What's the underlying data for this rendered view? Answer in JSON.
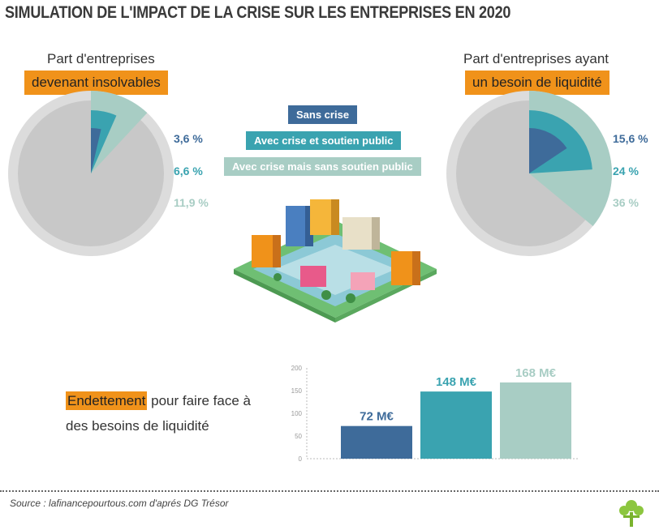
{
  "title": "SIMULATION DE L'IMPACT DE LA CRISE SUR LES ENTREPRISES EN 2020",
  "colors": {
    "sans_crise": "#3e6b9a",
    "avec_soutien": "#3aa3b0",
    "sans_soutien": "#a8cdc4",
    "highlight": "#f0921a",
    "pie_outer": "#dcdcdc",
    "pie_inner": "#c8c8c8"
  },
  "legend": {
    "sans_crise": "Sans crise",
    "avec_soutien": "Avec crise et soutien public",
    "sans_soutien": "Avec crise mais sans soutien public"
  },
  "left_pie": {
    "caption_line1": "Part d'entreprises",
    "caption_highlight": "devenant insolvables",
    "labels": [
      "3,6 %",
      "6,6 %",
      "11,9 %"
    ]
  },
  "right_pie": {
    "caption_line1": "Part d'entreprises ayant",
    "caption_highlight": "un besoin de liquidité",
    "labels": [
      "15,6 %",
      "24 %",
      "36 %"
    ]
  },
  "bar_block": {
    "caption_highlight": "Endettement",
    "caption_rest1": " pour faire face à",
    "caption_rest2": "des besoins de liquidité"
  },
  "source": "Source : lafinancepourtous.com d'aprés DG Trésor",
  "chart_data": [
    {
      "type": "pie",
      "title": "Part d'entreprises devenant insolvables",
      "series": [
        {
          "name": "Sans crise",
          "value": 3.6
        },
        {
          "name": "Avec crise et soutien public",
          "value": 6.6
        },
        {
          "name": "Avec crise mais sans soutien public",
          "value": 11.9
        }
      ]
    },
    {
      "type": "pie",
      "title": "Part d'entreprises ayant un besoin de liquidité",
      "series": [
        {
          "name": "Sans crise",
          "value": 15.6
        },
        {
          "name": "Avec crise et soutien public",
          "value": 24
        },
        {
          "name": "Avec crise mais sans soutien public",
          "value": 36
        }
      ]
    },
    {
      "type": "bar",
      "title": "Endettement pour faire face à des besoins de liquidité",
      "categories": [
        "Sans crise",
        "Avec crise et soutien public",
        "Avec crise mais sans soutien public"
      ],
      "values": [
        72,
        148,
        168
      ],
      "value_labels": [
        "72 M€",
        "148 M€",
        "168 M€"
      ],
      "ylim": [
        0,
        200
      ],
      "yticks": [
        "0",
        "50",
        "100",
        "150",
        "200"
      ]
    }
  ]
}
